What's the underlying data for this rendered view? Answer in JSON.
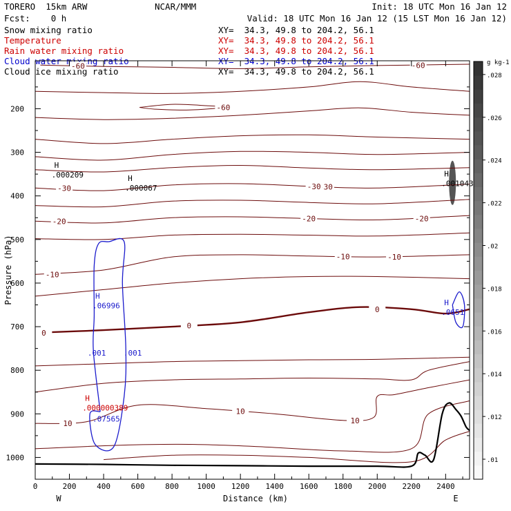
{
  "header": {
    "model": "TORERO  15km ARW",
    "forecast": "Fcst:    0 h",
    "center": "NCAR/MMM",
    "init": "Init: 18 UTC Mon 16 Jan 12",
    "valid": "Valid: 18 UTC Mon 16 Jan 12 (15 LST Mon 16 Jan 12)"
  },
  "fields": [
    {
      "name": "Snow mixing ratio",
      "xy": "XY=  34.3, 49.8 to 204.2, 56.1",
      "color": "#000000"
    },
    {
      "name": "Temperature",
      "xy": "XY=  34.3, 49.8 to 204.2, 56.1",
      "color": "#cc0000"
    },
    {
      "name": "Rain water mixing ratio",
      "xy": "XY=  34.3, 49.8 to 204.2, 56.1",
      "color": "#cc0000"
    },
    {
      "name": "Cloud water mixing ratio",
      "xy": "XY=  34.3, 49.8 to 204.2, 56.1",
      "color": "#0000cc"
    },
    {
      "name": "Cloud ice mixing ratio",
      "xy": "XY=  34.3, 49.8 to 204.2, 56.1",
      "color": "#000000"
    }
  ],
  "colors": {
    "temperature": "#6b0a0a",
    "cloud_water": "#1a1acc",
    "rain": "#cc0000",
    "terrain": "#000000"
  },
  "chart_data": {
    "type": "cross-section contour",
    "xlabel": "Distance (km)",
    "ylabel": "Pressure (hPa)",
    "xlim": [
      0,
      2540
    ],
    "ylim": [
      1050,
      90
    ],
    "x_ticks": [
      0,
      200,
      400,
      600,
      800,
      1000,
      1200,
      1400,
      1600,
      1800,
      2000,
      2200,
      2400
    ],
    "y_ticks": [
      200,
      300,
      400,
      500,
      600,
      700,
      800,
      900,
      1000
    ],
    "x_end_labels": {
      "left": "W",
      "right": "E"
    },
    "colorbar": {
      "unit": "g kg-1",
      "ticks": [
        ".01",
        ".012",
        ".014",
        ".016",
        ".018",
        ".02",
        ".022",
        ".024",
        ".026",
        ".028"
      ]
    },
    "temperature_contours": [
      {
        "label": "-60",
        "points": [
          [
            30,
            100
          ],
          [
            400,
            103
          ],
          [
            800,
            105
          ],
          [
            1200,
            108
          ],
          [
            1600,
            104
          ],
          [
            2000,
            101
          ],
          [
            2540,
            98
          ]
        ]
      },
      {
        "label": "-60",
        "points": [
          [
            610,
            197
          ],
          [
            800,
            190
          ],
          [
            1000,
            193
          ],
          [
            1100,
            197
          ],
          [
            900,
            203
          ],
          [
            700,
            201
          ],
          [
            610,
            197
          ]
        ]
      },
      {
        "label": "",
        "points": [
          [
            0,
            160
          ],
          [
            400,
            163
          ],
          [
            800,
            165
          ],
          [
            1200,
            160
          ],
          [
            1600,
            150
          ],
          [
            1900,
            138
          ],
          [
            2200,
            150
          ],
          [
            2540,
            160
          ]
        ]
      },
      {
        "label": "",
        "points": [
          [
            0,
            220
          ],
          [
            400,
            225
          ],
          [
            800,
            222
          ],
          [
            1200,
            215
          ],
          [
            1600,
            205
          ],
          [
            1900,
            198
          ],
          [
            2200,
            208
          ],
          [
            2540,
            215
          ]
        ]
      },
      {
        "label": "",
        "points": [
          [
            0,
            270
          ],
          [
            400,
            280
          ],
          [
            800,
            270
          ],
          [
            1200,
            262
          ],
          [
            1600,
            260
          ],
          [
            2000,
            265
          ],
          [
            2540,
            270
          ]
        ]
      },
      {
        "label": "",
        "points": [
          [
            0,
            310
          ],
          [
            400,
            318
          ],
          [
            800,
            305
          ],
          [
            1200,
            298
          ],
          [
            1600,
            300
          ],
          [
            2000,
            305
          ],
          [
            2540,
            300
          ]
        ]
      },
      {
        "label": "",
        "points": [
          [
            0,
            340
          ],
          [
            400,
            345
          ],
          [
            800,
            335
          ],
          [
            1200,
            330
          ],
          [
            1600,
            336
          ],
          [
            2000,
            340
          ],
          [
            2540,
            335
          ]
        ]
      },
      {
        "label": "-30",
        "points": [
          [
            0,
            382
          ],
          [
            400,
            388
          ],
          [
            800,
            375
          ],
          [
            1200,
            372
          ],
          [
            1600,
            378
          ],
          [
            2000,
            382
          ],
          [
            2540,
            373
          ]
        ]
      },
      {
        "label": "",
        "points": [
          [
            0,
            422
          ],
          [
            400,
            425
          ],
          [
            800,
            412
          ],
          [
            1200,
            410
          ],
          [
            1600,
            415
          ],
          [
            2000,
            418
          ],
          [
            2540,
            408
          ]
        ]
      },
      {
        "label": "-20",
        "points": [
          [
            0,
            458
          ],
          [
            400,
            462
          ],
          [
            800,
            450
          ],
          [
            1200,
            448
          ],
          [
            1600,
            452
          ],
          [
            2000,
            455
          ],
          [
            2540,
            445
          ]
        ]
      },
      {
        "label": "",
        "points": [
          [
            0,
            498
          ],
          [
            400,
            500
          ],
          [
            800,
            490
          ],
          [
            1200,
            488
          ],
          [
            1600,
            490
          ],
          [
            2000,
            492
          ],
          [
            2540,
            485
          ]
        ]
      },
      {
        "label": "-10",
        "points": [
          [
            0,
            580
          ],
          [
            400,
            570
          ],
          [
            800,
            540
          ],
          [
            1200,
            535
          ],
          [
            1600,
            538
          ],
          [
            2000,
            540
          ],
          [
            2540,
            535
          ]
        ]
      },
      {
        "label": "",
        "points": [
          [
            0,
            630
          ],
          [
            400,
            615
          ],
          [
            800,
            600
          ],
          [
            1200,
            590
          ],
          [
            1600,
            585
          ],
          [
            2000,
            585
          ],
          [
            2540,
            590
          ]
        ]
      },
      {
        "label": "0",
        "points": [
          [
            0,
            714
          ],
          [
            400,
            708
          ],
          [
            800,
            700
          ],
          [
            1200,
            690
          ],
          [
            1600,
            667
          ],
          [
            1900,
            655
          ],
          [
            2200,
            660
          ],
          [
            2400,
            670
          ],
          [
            2540,
            660
          ]
        ]
      },
      {
        "label": "",
        "points": [
          [
            0,
            790
          ],
          [
            400,
            785
          ],
          [
            800,
            780
          ],
          [
            1200,
            778
          ],
          [
            1600,
            776
          ],
          [
            2000,
            775
          ],
          [
            2540,
            770
          ]
        ]
      },
      {
        "label": "",
        "points": [
          [
            0,
            850
          ],
          [
            400,
            830
          ],
          [
            800,
            822
          ],
          [
            1200,
            820
          ],
          [
            1600,
            818
          ],
          [
            2000,
            820
          ],
          [
            2200,
            822
          ],
          [
            2300,
            800
          ],
          [
            2540,
            780
          ]
        ]
      },
      {
        "label": "10",
        "points": [
          [
            0,
            922
          ],
          [
            300,
            918
          ],
          [
            600,
            880
          ],
          [
            1000,
            888
          ],
          [
            1400,
            900
          ],
          [
            1800,
            915
          ],
          [
            1980,
            908
          ],
          [
            2000,
            860
          ],
          [
            2100,
            856
          ],
          [
            2300,
            840
          ],
          [
            2540,
            822
          ]
        ]
      },
      {
        "label": "",
        "points": [
          [
            0,
            980
          ],
          [
            500,
            972
          ],
          [
            900,
            970
          ],
          [
            1300,
            975
          ],
          [
            1800,
            985
          ],
          [
            2200,
            980
          ],
          [
            2300,
            900
          ],
          [
            2540,
            870
          ]
        ]
      },
      {
        "label": "",
        "points": [
          [
            400,
            1005
          ],
          [
            800,
            995
          ],
          [
            1200,
            995
          ],
          [
            1600,
            1000
          ],
          [
            2200,
            1010
          ],
          [
            2400,
            960
          ],
          [
            2540,
            940
          ]
        ]
      }
    ],
    "cloud_water_contours": [
      {
        "label": ".001",
        "points": [
          [
            380,
            895
          ],
          [
            340,
            755
          ],
          [
            345,
            675
          ],
          [
            345,
            560
          ],
          [
            370,
            510
          ],
          [
            430,
            505
          ],
          [
            520,
            505
          ],
          [
            510,
            600
          ],
          [
            530,
            750
          ],
          [
            520,
            860
          ],
          [
            460,
            975
          ],
          [
            350,
            970
          ],
          [
            320,
            900
          ],
          [
            380,
            895
          ]
        ]
      },
      {
        "label": ".001",
        "points": [
          [
            2440,
            650
          ],
          [
            2480,
            620
          ],
          [
            2510,
            650
          ],
          [
            2500,
            700
          ],
          [
            2460,
            690
          ],
          [
            2440,
            650
          ]
        ]
      }
    ],
    "maxima": [
      {
        "label": "H",
        "value": ".000209",
        "x": 160,
        "p": 345,
        "color": "#000000"
      },
      {
        "label": "H",
        "value": ".000067",
        "x": 590,
        "p": 375,
        "color": "#000000"
      },
      {
        "label": "H",
        "value": ".001043",
        "x": 2440,
        "p": 365,
        "color": "#000000"
      },
      {
        "label": "H",
        "value": ".06996",
        "x": 400,
        "p": 645,
        "color": "#1a1acc"
      },
      {
        "label": "H",
        "value": ".0651",
        "x": 2440,
        "p": 660,
        "color": "#1a1acc"
      },
      {
        "label": "H",
        "value": ".000000389",
        "x": 340,
        "p": 880,
        "color": "#cc0000"
      },
      {
        "label": "",
        "value": ".07565",
        "x": 400,
        "p": 905,
        "color": "#1a1acc"
      }
    ],
    "terrain": [
      [
        0,
        1015
      ],
      [
        400,
        1016
      ],
      [
        800,
        1018
      ],
      [
        1200,
        1019
      ],
      [
        1600,
        1020
      ],
      [
        2000,
        1020
      ],
      [
        2200,
        1020
      ],
      [
        2240,
        990
      ],
      [
        2280,
        995
      ],
      [
        2330,
        1005
      ],
      [
        2380,
        900
      ],
      [
        2420,
        875
      ],
      [
        2460,
        890
      ],
      [
        2490,
        905
      ],
      [
        2520,
        930
      ],
      [
        2540,
        938
      ]
    ],
    "snow_max": {
      "x": 2440,
      "p": 370
    }
  }
}
